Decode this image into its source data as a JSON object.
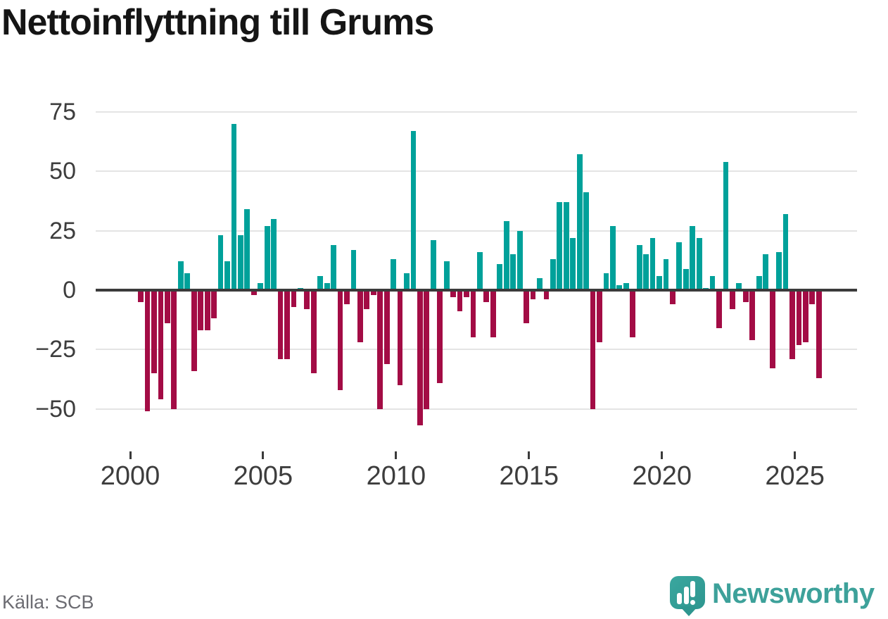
{
  "title": "Nettoinflyttning till Grums",
  "source_note": "Källa: SCB",
  "brand": {
    "name": "Newsworthy",
    "logo_icon": "speech-bubble-bar-chart-icon",
    "text_color": "#3da19a"
  },
  "colors": {
    "positive_bar": "#00a19a",
    "negative_bar": "#a30c45",
    "gridline": "#e4e4e4",
    "axis_line": "#3b3b3b",
    "tick_label": "#3d3d3d",
    "title_text": "#151515",
    "source_text": "#6c6c72",
    "background": "#ffffff"
  },
  "chart_data": {
    "type": "bar",
    "title": "Nettoinflyttning till Grums",
    "unit": "persons, net migration per quarter",
    "frequency": "quarterly",
    "start": "2000-Q2",
    "end": "2025-Q4",
    "grid": "horizontal",
    "legend": "none",
    "ylim": [
      -62,
      80
    ],
    "y_ticks": [
      75,
      50,
      25,
      0,
      -25,
      -50
    ],
    "y_tick_labels": [
      "75",
      "50",
      "25",
      "0",
      "−25",
      "−50"
    ],
    "x_tick_years": [
      2000,
      2005,
      2010,
      2015,
      2020,
      2025
    ],
    "x_tick_labels": [
      "2000",
      "2005",
      "2010",
      "2015",
      "2020",
      "2025"
    ],
    "series": [
      {
        "name": "Nettoinflyttning",
        "points": [
          {
            "t": "2000-Q2",
            "v": -5
          },
          {
            "t": "2000-Q3",
            "v": -51
          },
          {
            "t": "2000-Q4",
            "v": -35
          },
          {
            "t": "2001-Q1",
            "v": -46
          },
          {
            "t": "2001-Q2",
            "v": -14
          },
          {
            "t": "2001-Q3",
            "v": -50
          },
          {
            "t": "2001-Q4",
            "v": 12
          },
          {
            "t": "2002-Q1",
            "v": 7
          },
          {
            "t": "2002-Q2",
            "v": -34
          },
          {
            "t": "2002-Q3",
            "v": -17
          },
          {
            "t": "2002-Q4",
            "v": -17
          },
          {
            "t": "2003-Q1",
            "v": -12
          },
          {
            "t": "2003-Q2",
            "v": 23
          },
          {
            "t": "2003-Q3",
            "v": 12
          },
          {
            "t": "2003-Q4",
            "v": 70
          },
          {
            "t": "2004-Q1",
            "v": 23
          },
          {
            "t": "2004-Q2",
            "v": 34
          },
          {
            "t": "2004-Q3",
            "v": -2
          },
          {
            "t": "2004-Q4",
            "v": 3
          },
          {
            "t": "2005-Q1",
            "v": 27
          },
          {
            "t": "2005-Q2",
            "v": 30
          },
          {
            "t": "2005-Q3",
            "v": -29
          },
          {
            "t": "2005-Q4",
            "v": -29
          },
          {
            "t": "2006-Q1",
            "v": -7
          },
          {
            "t": "2006-Q2",
            "v": 1
          },
          {
            "t": "2006-Q3",
            "v": -8
          },
          {
            "t": "2006-Q4",
            "v": -35
          },
          {
            "t": "2007-Q1",
            "v": 6
          },
          {
            "t": "2007-Q2",
            "v": 3
          },
          {
            "t": "2007-Q3",
            "v": 19
          },
          {
            "t": "2007-Q4",
            "v": -42
          },
          {
            "t": "2008-Q1",
            "v": -6
          },
          {
            "t": "2008-Q2",
            "v": 17
          },
          {
            "t": "2008-Q3",
            "v": -22
          },
          {
            "t": "2008-Q4",
            "v": -8
          },
          {
            "t": "2009-Q1",
            "v": -2
          },
          {
            "t": "2009-Q2",
            "v": -50
          },
          {
            "t": "2009-Q3",
            "v": -31
          },
          {
            "t": "2009-Q4",
            "v": 13
          },
          {
            "t": "2010-Q1",
            "v": -40
          },
          {
            "t": "2010-Q2",
            "v": 7
          },
          {
            "t": "2010-Q3",
            "v": 67
          },
          {
            "t": "2010-Q4",
            "v": -57
          },
          {
            "t": "2011-Q1",
            "v": -50
          },
          {
            "t": "2011-Q2",
            "v": 21
          },
          {
            "t": "2011-Q3",
            "v": -39
          },
          {
            "t": "2011-Q4",
            "v": 12
          },
          {
            "t": "2012-Q1",
            "v": -3
          },
          {
            "t": "2012-Q2",
            "v": -9
          },
          {
            "t": "2012-Q3",
            "v": -3
          },
          {
            "t": "2012-Q4",
            "v": -20
          },
          {
            "t": "2013-Q1",
            "v": 16
          },
          {
            "t": "2013-Q2",
            "v": -5
          },
          {
            "t": "2013-Q3",
            "v": -20
          },
          {
            "t": "2013-Q4",
            "v": 11
          },
          {
            "t": "2014-Q1",
            "v": 29
          },
          {
            "t": "2014-Q2",
            "v": 15
          },
          {
            "t": "2014-Q3",
            "v": 25
          },
          {
            "t": "2014-Q4",
            "v": -14
          },
          {
            "t": "2015-Q1",
            "v": -4
          },
          {
            "t": "2015-Q2",
            "v": 5
          },
          {
            "t": "2015-Q3",
            "v": -4
          },
          {
            "t": "2015-Q4",
            "v": 13
          },
          {
            "t": "2016-Q1",
            "v": 37
          },
          {
            "t": "2016-Q2",
            "v": 37
          },
          {
            "t": "2016-Q3",
            "v": 22
          },
          {
            "t": "2016-Q4",
            "v": 57
          },
          {
            "t": "2017-Q1",
            "v": 41
          },
          {
            "t": "2017-Q2",
            "v": -50
          },
          {
            "t": "2017-Q3",
            "v": -22
          },
          {
            "t": "2017-Q4",
            "v": 7
          },
          {
            "t": "2018-Q1",
            "v": 27
          },
          {
            "t": "2018-Q2",
            "v": 2
          },
          {
            "t": "2018-Q3",
            "v": 3
          },
          {
            "t": "2018-Q4",
            "v": -20
          },
          {
            "t": "2019-Q1",
            "v": 19
          },
          {
            "t": "2019-Q2",
            "v": 15
          },
          {
            "t": "2019-Q3",
            "v": 22
          },
          {
            "t": "2019-Q4",
            "v": 6
          },
          {
            "t": "2020-Q1",
            "v": 13
          },
          {
            "t": "2020-Q2",
            "v": -6
          },
          {
            "t": "2020-Q3",
            "v": 20
          },
          {
            "t": "2020-Q4",
            "v": 9
          },
          {
            "t": "2021-Q1",
            "v": 27
          },
          {
            "t": "2021-Q2",
            "v": 22
          },
          {
            "t": "2021-Q3",
            "v": 1
          },
          {
            "t": "2021-Q4",
            "v": 6
          },
          {
            "t": "2022-Q1",
            "v": -16
          },
          {
            "t": "2022-Q2",
            "v": 54
          },
          {
            "t": "2022-Q3",
            "v": -8
          },
          {
            "t": "2022-Q4",
            "v": 3
          },
          {
            "t": "2023-Q1",
            "v": -5
          },
          {
            "t": "2023-Q2",
            "v": -21
          },
          {
            "t": "2023-Q3",
            "v": 6
          },
          {
            "t": "2023-Q4",
            "v": 15
          },
          {
            "t": "2024-Q1",
            "v": -33
          },
          {
            "t": "2024-Q2",
            "v": 16
          },
          {
            "t": "2024-Q3",
            "v": 32
          },
          {
            "t": "2024-Q4",
            "v": -29
          },
          {
            "t": "2025-Q1",
            "v": -23
          },
          {
            "t": "2025-Q2",
            "v": -22
          },
          {
            "t": "2025-Q3",
            "v": -6
          },
          {
            "t": "2025-Q4",
            "v": -37
          }
        ]
      }
    ]
  }
}
